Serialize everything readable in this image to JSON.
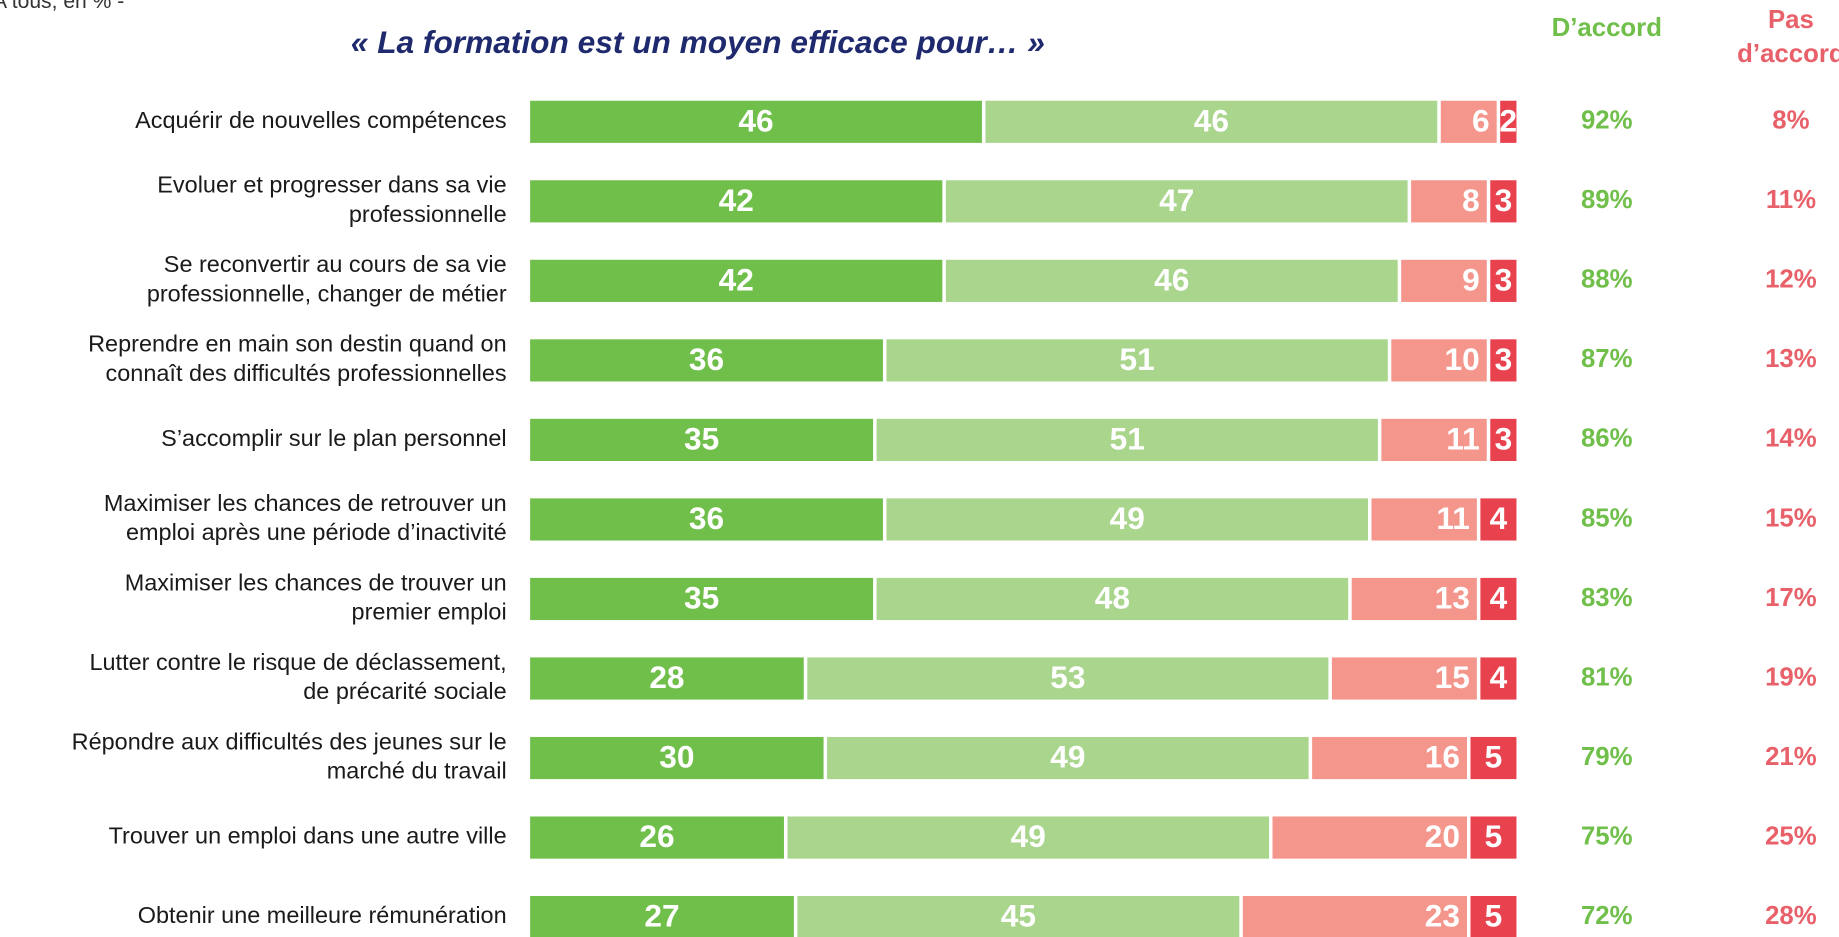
{
  "chart_data": {
    "type": "stacked-barh",
    "note": "A tous, en % -",
    "title": "« La formation est un moyen efficace pour… »",
    "categories": [
      "Acquérir de nouvelles compétences",
      "Evoluer et progresser dans sa vie\nprofessionnelle",
      "Se reconvertir au cours de sa vie\nprofessionnelle, changer de métier",
      "Reprendre en main son destin quand on\nconnaît des difficultés professionnelles",
      "S’accomplir sur le plan personnel",
      "Maximiser les chances de retrouver un\nemploi après une période d’inactivité",
      "Maximiser les chances de trouver un\npremier emploi",
      "Lutter contre le risque de déclassement,\nde précarité sociale",
      "Répondre aux difficultés des jeunes sur le\nmarché du travail",
      "Trouver un emploi dans une autre ville",
      "Obtenir une meilleure rémunération"
    ],
    "xlim": [
      0,
      100
    ],
    "series": [
      {
        "color": "#70bf4a",
        "values": [
          46,
          42,
          42,
          36,
          35,
          36,
          35,
          28,
          30,
          26,
          27
        ]
      },
      {
        "color": "#a9d58d",
        "values": [
          46,
          47,
          46,
          51,
          51,
          49,
          48,
          53,
          49,
          49,
          45
        ]
      },
      {
        "color": "#f4968c",
        "values": [
          6,
          8,
          9,
          10,
          11,
          11,
          13,
          15,
          16,
          20,
          23
        ]
      },
      {
        "color": "#e8424f",
        "values": [
          2,
          3,
          3,
          3,
          3,
          4,
          4,
          4,
          5,
          5,
          5
        ]
      }
    ],
    "totals": [
      {
        "header": [
          "D’accord"
        ],
        "color": "#70bf4a",
        "values": [
          92,
          89,
          88,
          87,
          86,
          85,
          83,
          81,
          79,
          75,
          72
        ],
        "value_labels": [
          "92%",
          "89%",
          "88%",
          "87%",
          "86%",
          "85%",
          "83%",
          "81%",
          "79%",
          "75%",
          "72%"
        ]
      },
      {
        "header": [
          "Pas",
          "d’accord"
        ],
        "color": "#e8616a",
        "values": [
          8,
          11,
          12,
          13,
          14,
          15,
          17,
          19,
          21,
          25,
          28
        ],
        "value_labels": [
          "8%",
          "11%",
          "12%",
          "13%",
          "14%",
          "15%",
          "17%",
          "19%",
          "21%",
          "25%",
          "28%"
        ]
      }
    ]
  }
}
